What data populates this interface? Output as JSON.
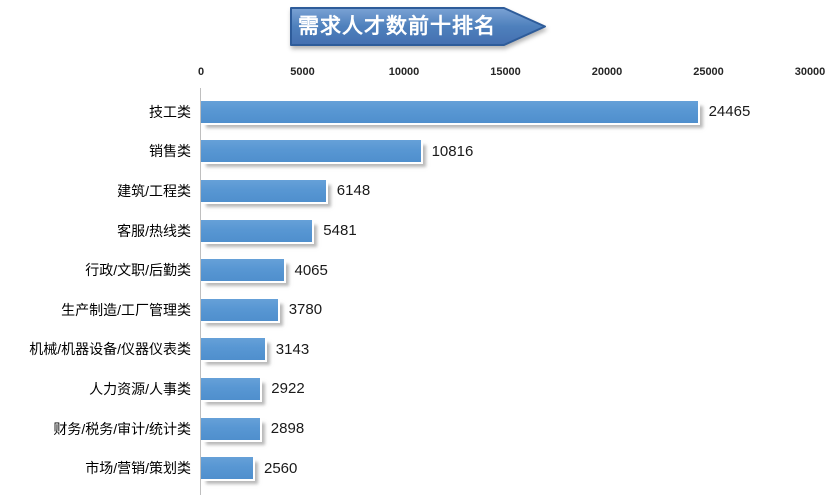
{
  "title": "需求人才数前十排名",
  "chart_data": {
    "type": "bar",
    "orientation": "horizontal",
    "title": "需求人才数前十排名",
    "categories": [
      "技工类",
      "销售类",
      "建筑/工程类",
      "客服/热线类",
      "行政/文职/后勤类",
      "生产制造/工厂管理类",
      "机械/机器设备/仪器仪表类",
      "人力资源/人事类",
      "财务/税务/审计/统计类",
      "市场/营销/策划类"
    ],
    "values": [
      24465,
      10816,
      6148,
      5481,
      4065,
      3780,
      3143,
      2922,
      2898,
      2560
    ],
    "data_labels": [
      "24465",
      "10816",
      "6148",
      "5481",
      "4065",
      "3780",
      "3143",
      "2922",
      "2898",
      "2560"
    ],
    "xlim": [
      0,
      30000
    ],
    "x_ticks": [
      "0",
      "5000",
      "10000",
      "15000",
      "20000",
      "25000",
      "30000"
    ],
    "tick_position": "top",
    "grid": false,
    "legend": "none",
    "bar_color": "#5897D3",
    "banner_fill_top": "#7BA2D4",
    "banner_fill_bottom": "#446FB0",
    "banner_border": "#2E5C9A",
    "axis_line_color": "#BFBFBF"
  }
}
